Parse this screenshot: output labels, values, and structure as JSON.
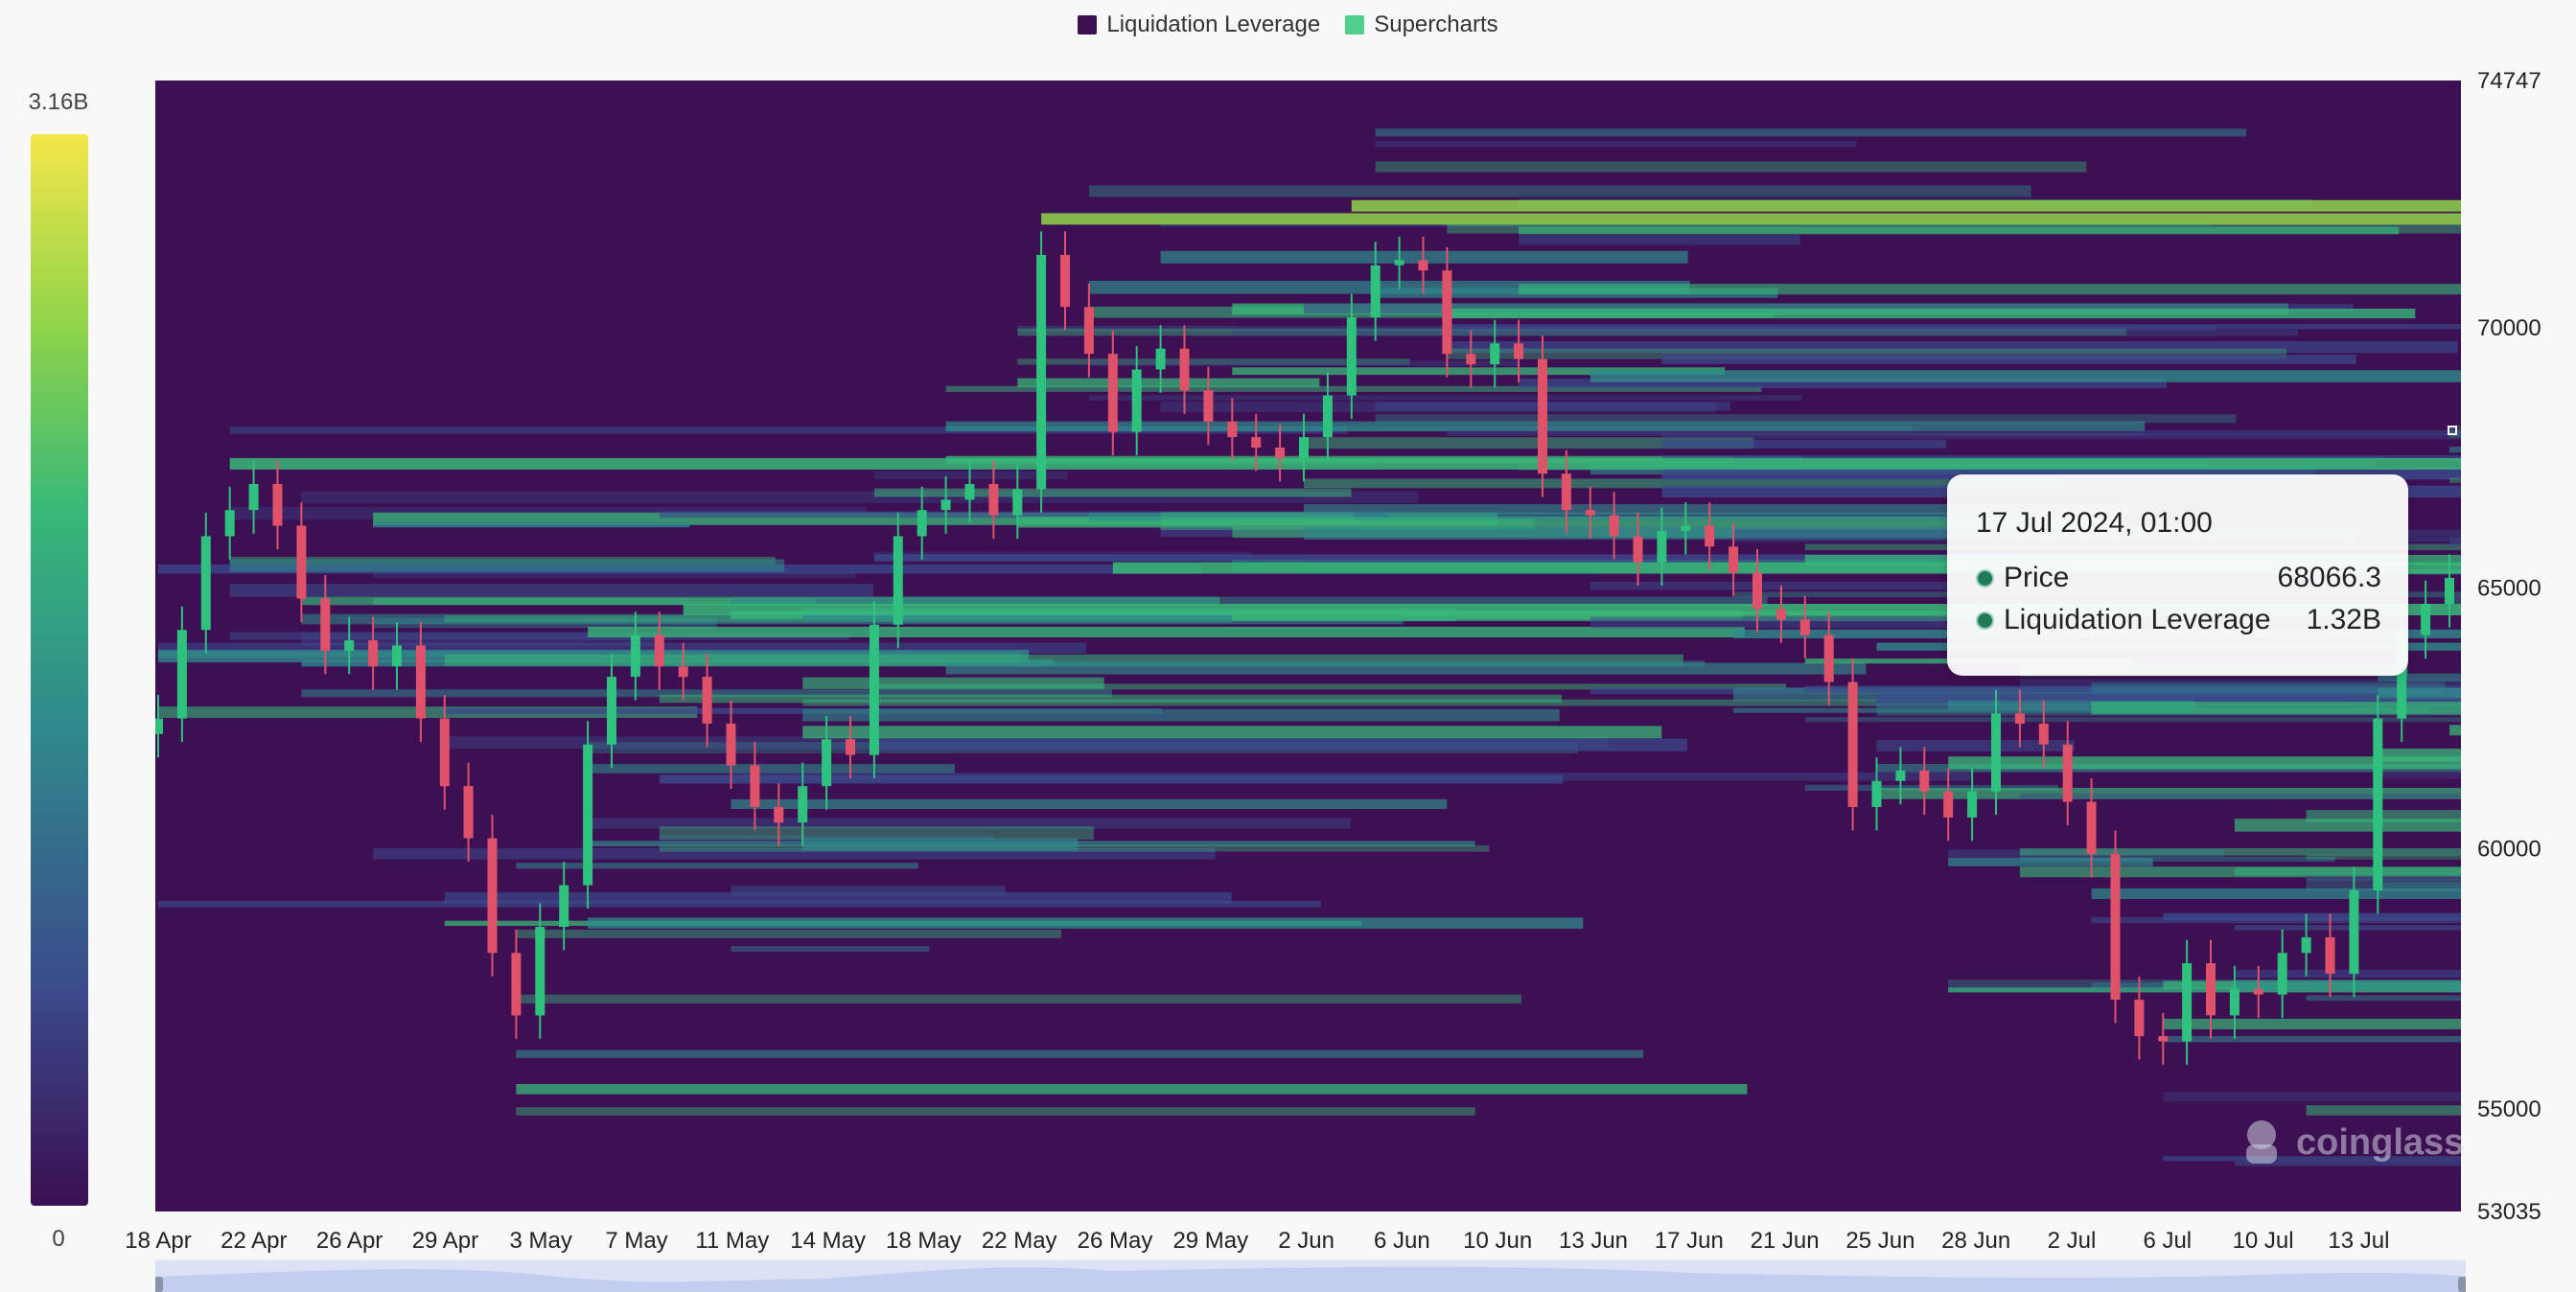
{
  "legend": {
    "items": [
      {
        "label": "Liquidation Leverage",
        "color": "#3c1052"
      },
      {
        "label": "Supercharts",
        "color": "#4fcf8a"
      }
    ]
  },
  "colorbar": {
    "max_label": "3.16B",
    "min_label": "0",
    "colors": [
      "#3b0f53",
      "#3b4a8c",
      "#2f8a8c",
      "#38b878",
      "#8fd44a",
      "#f4e64a"
    ]
  },
  "tooltip": {
    "title": "17 Jul 2024, 01:00",
    "rows": [
      {
        "name": "Price",
        "value": "68066.3"
      },
      {
        "name": "Liquidation Leverage",
        "value": "1.32B"
      }
    ]
  },
  "watermark": "coinglass",
  "chart_data": {
    "type": "heatmap",
    "x_tick_labels": [
      "18 Apr",
      "22 Apr",
      "26 Apr",
      "29 Apr",
      "3 May",
      "7 May",
      "11 May",
      "14 May",
      "18 May",
      "22 May",
      "26 May",
      "29 May",
      "2 Jun",
      "6 Jun",
      "10 Jun",
      "13 Jun",
      "17 Jun",
      "21 Jun",
      "25 Jun",
      "28 Jun",
      "2 Jul",
      "6 Jul",
      "10 Jul",
      "13 Jul"
    ],
    "y_tick_labels": [
      "74747",
      "70000",
      "65000",
      "60000",
      "55000",
      "53035"
    ],
    "ylim": [
      53035,
      74747
    ],
    "price_series": {
      "name": "Price",
      "values": [
        62500,
        64200,
        66000,
        66500,
        67000,
        66200,
        64800,
        63800,
        64000,
        63500,
        63900,
        62500,
        61200,
        60200,
        58000,
        56800,
        58500,
        59300,
        62000,
        63300,
        64100,
        63500,
        63300,
        62400,
        61600,
        60800,
        60500,
        61200,
        62100,
        61800,
        64300,
        66000,
        66500,
        66700,
        67000,
        66400,
        66900,
        71400,
        70400,
        69500,
        68000,
        69200,
        69600,
        68800,
        68200,
        67900,
        67700,
        67500,
        67900,
        68700,
        70200,
        71200,
        71300,
        71100,
        69500,
        69300,
        69700,
        69400,
        67200,
        66500,
        66400,
        66000,
        65500,
        66100,
        66200,
        65800,
        65300,
        64600,
        64400,
        64100,
        63200,
        60800,
        61300,
        61500,
        61100,
        60600,
        61100,
        62600,
        62400,
        62000,
        60900,
        59900,
        57100,
        56400,
        56300,
        57800,
        56800,
        57300,
        57200,
        58000,
        58300,
        57600,
        59200,
        62500,
        64100,
        64700,
        65200
      ]
    },
    "liquidation_color_max": "3.16B"
  }
}
